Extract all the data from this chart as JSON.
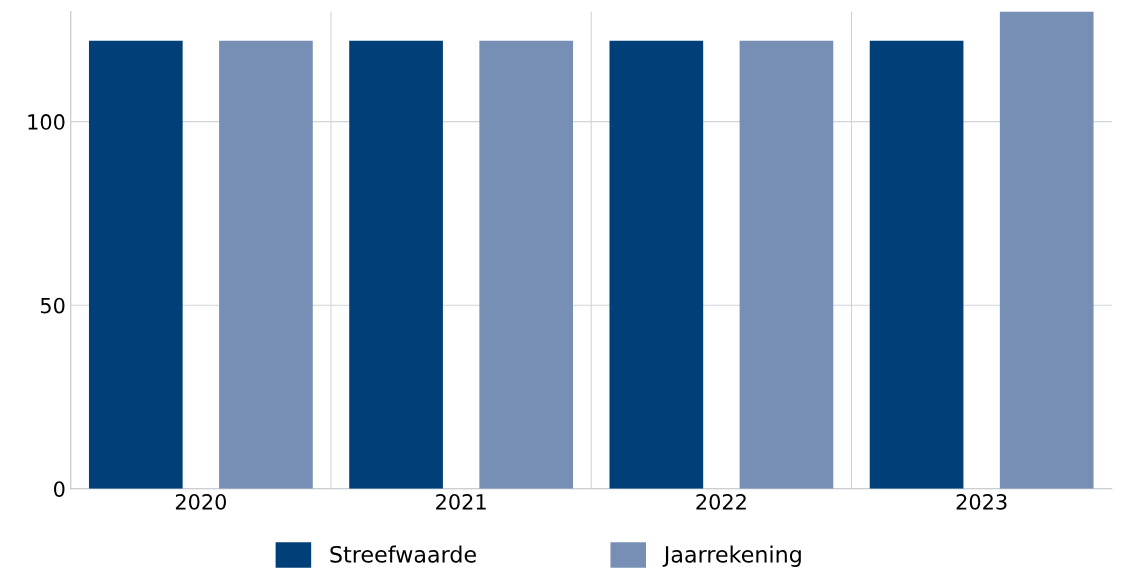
{
  "chart_data": {
    "type": "bar",
    "categories": [
      "2020",
      "2021",
      "2022",
      "2023"
    ],
    "series": [
      {
        "name": "Streefwaarde",
        "color": "#003f77",
        "values": [
          122,
          122,
          122,
          122
        ]
      },
      {
        "name": "Jaarrekening",
        "color": "#778fb5",
        "values": [
          122,
          122,
          122,
          130
        ]
      }
    ],
    "ylim": [
      0,
      130
    ],
    "yticks": [
      0,
      50,
      100
    ],
    "grid": true,
    "legend": "bottom"
  }
}
